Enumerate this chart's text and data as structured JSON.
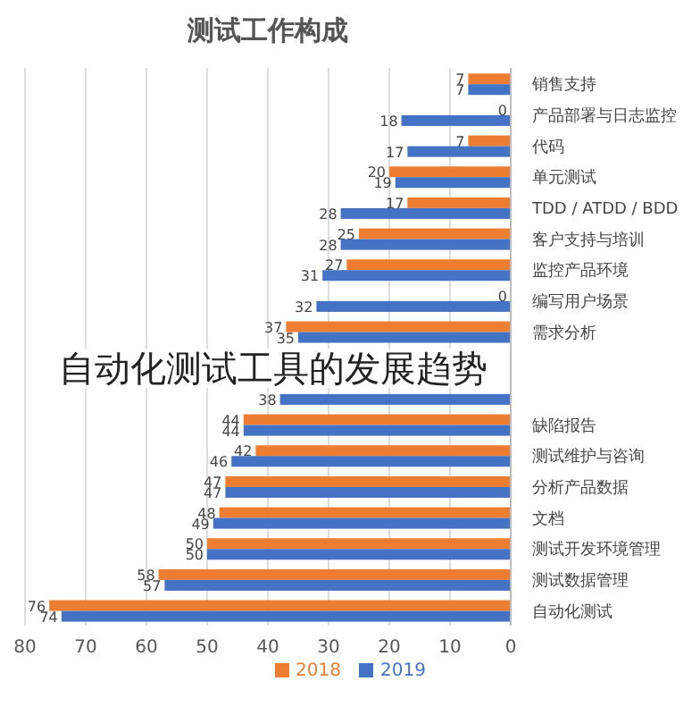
{
  "chart_data": {
    "type": "bar",
    "orientation": "horizontal",
    "title": "测试工作构成",
    "categories": [
      "销售支持",
      "产品部署与日志监控",
      "代码",
      "单元测试",
      "TDD / ATDD / BDD",
      "客户支持与培训",
      "监控产品环境",
      "编写用户场景",
      "需求分析",
      null,
      null,
      "缺陷报告",
      "测试维护与咨询",
      "分析产品数据",
      "文档",
      "测试开发环境管理",
      "测试数据管理",
      "自动化测试"
    ],
    "series": [
      {
        "name": "2018",
        "color": "#ed7d31",
        "values": [
          7,
          0,
          7,
          20,
          17,
          25,
          27,
          0,
          37,
          null,
          null,
          44,
          42,
          47,
          48,
          50,
          58,
          76
        ]
      },
      {
        "name": "2019",
        "color": "#4472c4",
        "values": [
          7,
          18,
          17,
          19,
          28,
          28,
          31,
          32,
          35,
          null,
          38,
          44,
          46,
          47,
          49,
          50,
          57,
          74
        ]
      }
    ],
    "xlim": [
      80,
      0
    ],
    "xticks": [
      0,
      10,
      20,
      30,
      40,
      50,
      60,
      70,
      80
    ],
    "grid": "x",
    "legend": "bottom",
    "data_labels": true,
    "annotations": [
      "自动化测试工具的发展趋势"
    ]
  }
}
